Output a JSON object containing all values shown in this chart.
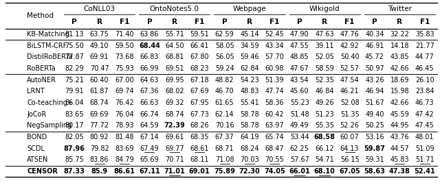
{
  "groups": [
    "CoNLL03",
    "OntoNotes5.0",
    "Webpage",
    "Wikigold",
    "Twitter"
  ],
  "rows": [
    [
      "KB-Matching",
      "81.13",
      "63.75",
      "71.40",
      "63.86",
      "55.71",
      "59.51",
      "62.59",
      "45.14",
      "52.45",
      "47.90",
      "47.63",
      "47.76",
      "40.34",
      "32.22",
      "35.83"
    ],
    [
      "BiLSTM-CRF",
      "75.50",
      "49.10",
      "59.50",
      "68.44",
      "64.50",
      "66.41",
      "58.05",
      "34.59",
      "43.34",
      "47.55",
      "39.11",
      "42.92",
      "46.91",
      "14.18",
      "21.77"
    ],
    [
      "DistilRoBERTa",
      "77.87",
      "69.91",
      "73.68",
      "66.83",
      "68.81",
      "67.80",
      "56.05",
      "59.46",
      "57.70",
      "48.85",
      "52.05",
      "50.40",
      "45.72",
      "43.85",
      "44.77"
    ],
    [
      "RoBERTa",
      "82.29",
      "70.47",
      "75.93",
      "66.99",
      "69.51",
      "68.23",
      "59.24",
      "62.84",
      "60.98",
      "47.67",
      "58.59",
      "52.57",
      "50.97",
      "42.66",
      "46.45"
    ],
    [
      "AutoNER",
      "75.21",
      "60.40",
      "67.00",
      "64.63",
      "69.95",
      "67.18",
      "48.82",
      "54.23",
      "51.39",
      "43.54",
      "52.35",
      "47.54",
      "43.26",
      "18.69",
      "26.10"
    ],
    [
      "LRNT",
      "79.91",
      "61.87",
      "69.74",
      "67.36",
      "68.02",
      "67.69",
      "46.70",
      "48.83",
      "47.74",
      "45.60",
      "46.84",
      "46.21",
      "46.94",
      "15.98",
      "23.84"
    ],
    [
      "Co-teaching+",
      "86.04",
      "68.74",
      "76.42",
      "66.63",
      "69.32",
      "67.95",
      "61.65",
      "55.41",
      "58.36",
      "55.23",
      "49.26",
      "52.08",
      "51.67",
      "42.66",
      "46.73"
    ],
    [
      "JoCoR",
      "83.65",
      "69.69",
      "76.04",
      "66.74",
      "68.74",
      "67.73",
      "62.14",
      "58.78",
      "60.42",
      "51.48",
      "51.23",
      "51.35",
      "49.40",
      "45.59",
      "47.42"
    ],
    [
      "NegSampling",
      "80.17",
      "77.72",
      "78.93",
      "64.59",
      "72.39",
      "68.26",
      "70.16",
      "58.78",
      "63.97",
      "49.49",
      "55.35",
      "52.26",
      "50.25",
      "44.95",
      "47.45"
    ],
    [
      "BOND",
      "82.05",
      "80.92",
      "81.48",
      "67.14",
      "69.61",
      "68.35",
      "67.37",
      "64.19",
      "65.74",
      "53.44",
      "68.58",
      "60.07",
      "53.16",
      "43.76",
      "48.01"
    ],
    [
      "SCDL",
      "87.96",
      "79.82",
      "83.69",
      "67.49",
      "69.77",
      "68.61",
      "68.71",
      "68.24",
      "68.47",
      "62.25",
      "66.12",
      "64.13",
      "59.87",
      "44.57",
      "51.09"
    ],
    [
      "ATSEN",
      "85.75",
      "83.86",
      "84.79",
      "65.69",
      "70.71",
      "68.11",
      "71.08",
      "70.03",
      "70.55",
      "57.67",
      "54.71",
      "56.15",
      "59.31",
      "45.83",
      "51.71"
    ],
    [
      "CENSOR",
      "87.33",
      "85.9",
      "86.61",
      "67.11",
      "71.01",
      "69.01",
      "75.89",
      "72.30",
      "74.05",
      "66.01",
      "68.10",
      "67.05",
      "58.63",
      "47.38",
      "52.41"
    ]
  ],
  "bold_vals": {
    "BiLSTM-CRF": [
      3
    ],
    "NegSampling": [
      4
    ],
    "BOND": [
      10
    ],
    "SCDL": [
      0,
      12
    ],
    "CENSOR": [
      0,
      1,
      2,
      4,
      6,
      7,
      8,
      9,
      10,
      11
    ]
  },
  "underline_vals": {
    "SCDL": [
      3,
      4,
      5,
      11
    ],
    "ATSEN": [
      1,
      2,
      6,
      7,
      8,
      13,
      14,
      15
    ],
    "CENSOR": [
      4,
      9,
      10
    ]
  },
  "row_groups": [
    [
      0
    ],
    [
      1,
      2,
      3
    ],
    [
      4,
      5,
      6,
      7,
      8
    ],
    [
      9,
      10,
      11
    ],
    [
      12
    ]
  ],
  "background_color": "#ffffff",
  "fig_width": 6.4,
  "fig_height": 2.86
}
